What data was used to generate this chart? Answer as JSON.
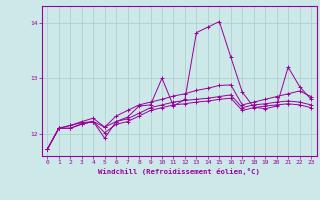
{
  "xlabel": "Windchill (Refroidissement éolien,°C)",
  "ylabel": "",
  "bg_color": "#cce8e8",
  "line_color": "#990099",
  "grid_color": "#aacccc",
  "x_ticks": [
    0,
    1,
    2,
    3,
    4,
    5,
    6,
    7,
    8,
    9,
    10,
    11,
    12,
    13,
    14,
    15,
    16,
    17,
    18,
    19,
    20,
    21,
    22,
    23
  ],
  "y_ticks": [
    12,
    13,
    14
  ],
  "ylim": [
    11.6,
    14.3
  ],
  "xlim": [
    -0.5,
    23.5
  ],
  "lines": [
    [
      11.72,
      12.1,
      12.1,
      12.18,
      12.22,
      11.92,
      12.22,
      12.3,
      12.5,
      12.52,
      13.0,
      12.5,
      12.62,
      13.82,
      13.92,
      14.02,
      13.38,
      12.75,
      12.48,
      12.45,
      12.5,
      13.2,
      12.85,
      12.62
    ],
    [
      11.72,
      12.1,
      12.15,
      12.22,
      12.28,
      12.12,
      12.32,
      12.42,
      12.52,
      12.57,
      12.62,
      12.68,
      12.72,
      12.78,
      12.82,
      12.87,
      12.88,
      12.52,
      12.57,
      12.62,
      12.67,
      12.72,
      12.77,
      12.67
    ],
    [
      11.72,
      12.1,
      12.15,
      12.2,
      12.22,
      12.12,
      12.22,
      12.27,
      12.37,
      12.47,
      12.52,
      12.57,
      12.6,
      12.62,
      12.64,
      12.67,
      12.7,
      12.47,
      12.52,
      12.54,
      12.57,
      12.59,
      12.57,
      12.52
    ],
    [
      11.72,
      12.1,
      12.1,
      12.17,
      12.22,
      12.02,
      12.17,
      12.22,
      12.32,
      12.42,
      12.47,
      12.52,
      12.54,
      12.57,
      12.59,
      12.62,
      12.64,
      12.42,
      12.47,
      12.5,
      12.52,
      12.54,
      12.52,
      12.47
    ]
  ]
}
